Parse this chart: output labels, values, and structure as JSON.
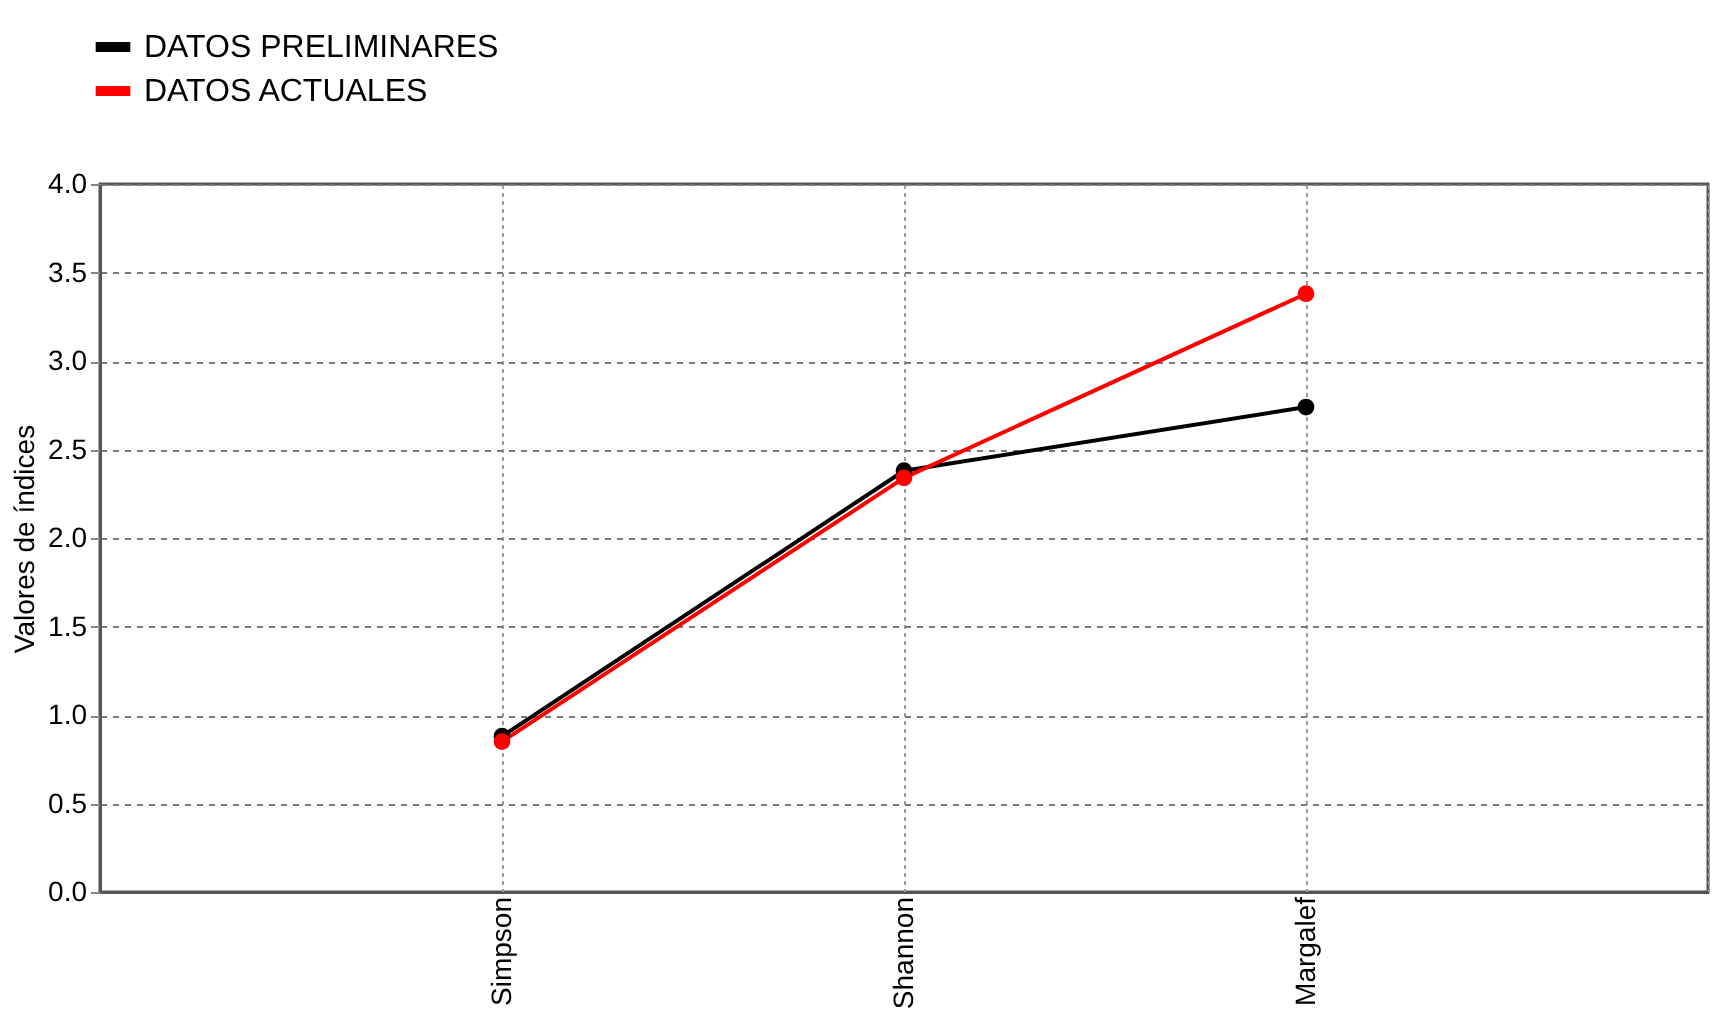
{
  "chart_data": {
    "type": "line",
    "ylabel": "Valores de índices",
    "categories": [
      null,
      "Simpson",
      "Shannon",
      "Margalef",
      null
    ],
    "series": [
      {
        "name": "DATOS PRELIMINARES",
        "color": "#000000",
        "values": [
          null,
          0.88,
          2.38,
          2.74,
          null
        ]
      },
      {
        "name": "DATOS ACTUALES",
        "color": "#ff0000",
        "values": [
          null,
          0.85,
          2.34,
          3.38,
          null
        ]
      }
    ],
    "ylim": [
      0,
      4
    ],
    "yticks": [
      {
        "value": 0,
        "label": "0.0"
      },
      0.5,
      {
        "value": 1,
        "label": "1.0"
      },
      1.5,
      {
        "value": 2,
        "label": "2.0"
      },
      2.5,
      {
        "value": 3,
        "label": "3.0"
      },
      3.5,
      {
        "value": 4,
        "label": "4.0"
      }
    ],
    "grid": true,
    "legend": "top left",
    "marker": "circle",
    "line_style": "solid"
  }
}
